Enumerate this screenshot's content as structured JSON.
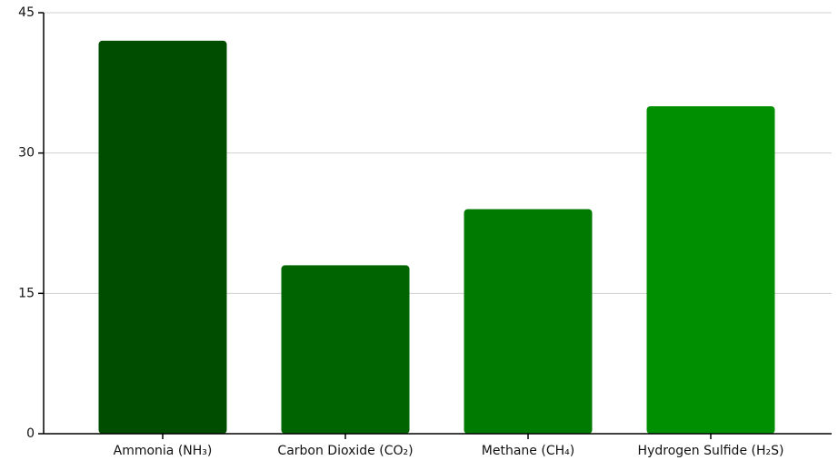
{
  "chart_data": {
    "type": "bar",
    "categories": [
      "Ammonia (NH₃)",
      "Carbon Dioxide (CO₂)",
      "Methane (CH₄)",
      "Hydrogen Sulfide (H₂S)"
    ],
    "values": [
      42,
      18,
      24,
      35
    ],
    "colors": [
      "#004d00",
      "#006400",
      "#007a00",
      "#008f00"
    ],
    "ylim": [
      0,
      45
    ],
    "yticks": [
      0,
      15,
      30,
      45
    ],
    "grid": true
  }
}
